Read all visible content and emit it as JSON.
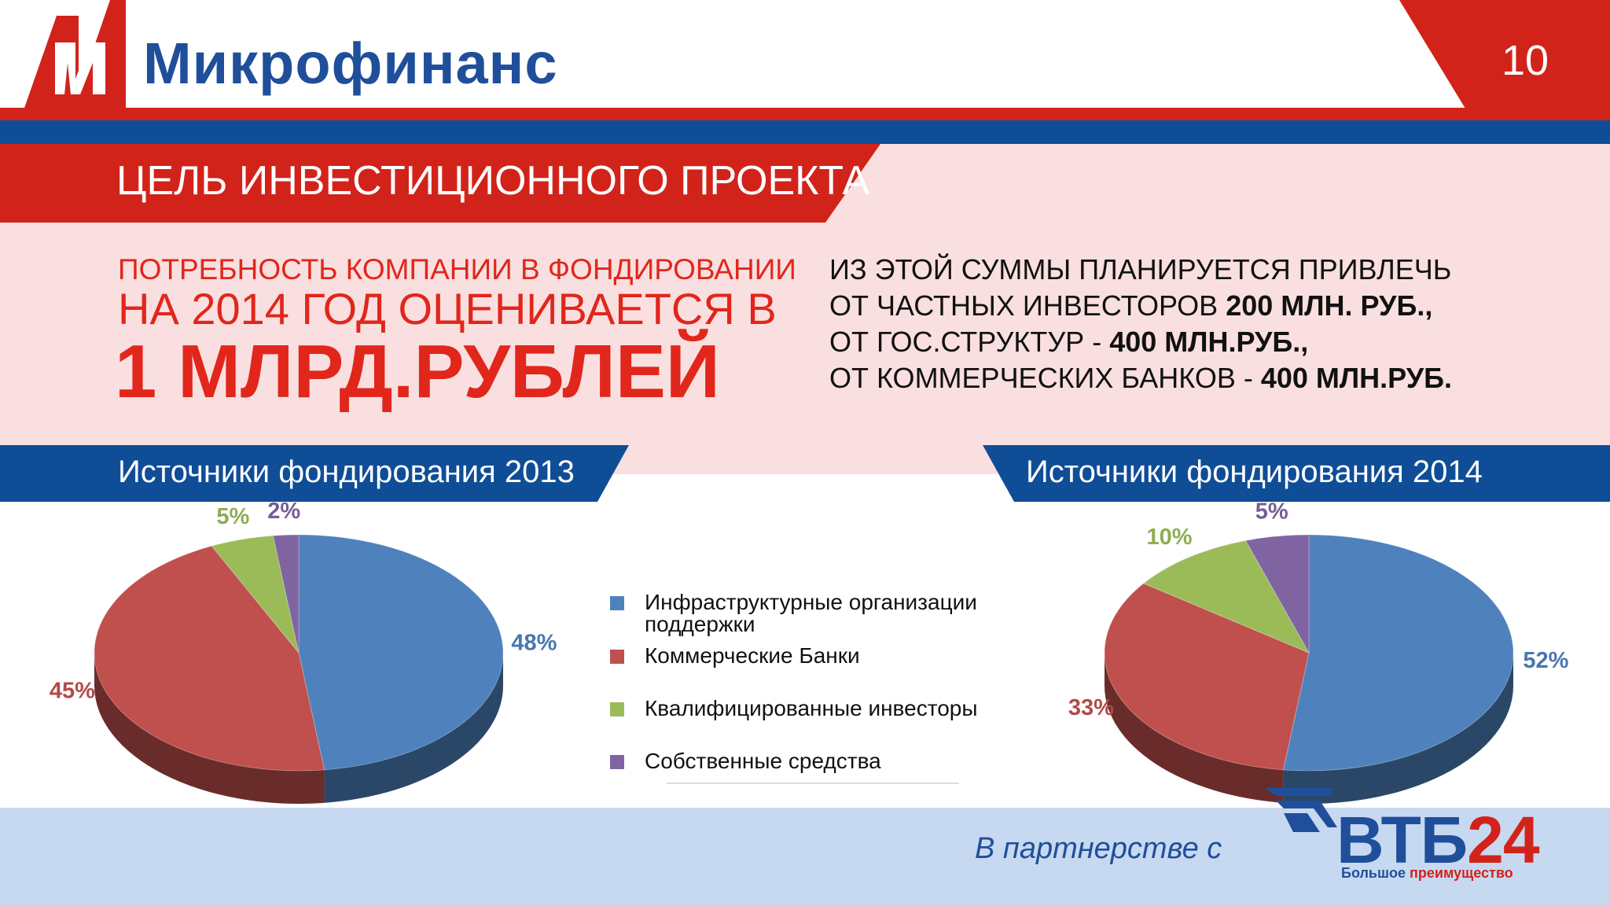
{
  "header": {
    "brand": "Микрофинанс",
    "page_number": "10",
    "logo_icon": "microfinance-m-logo"
  },
  "slide_title": "ЦЕЛЬ ИНВЕСТИЦИОННОГО ПРОЕКТА",
  "funding_need": {
    "line1": "ПОТРЕБНОСТЬ КОМПАНИИ В ФОНДИРОВАНИИ",
    "line2": "НА 2014 ГОД ОЦЕНИВАЕТСЯ В",
    "line3": "1 МЛРД.РУБЛЕЙ"
  },
  "plan": {
    "line1": "ИЗ ЭТОЙ СУММЫ ПЛАНИРУЕТСЯ ПРИВЛЕЧЬ",
    "line2_text": "ОТ ЧАСТНЫХ ИНВЕСТОРОВ ",
    "line2_bold": "200 МЛН. РУБ.,",
    "line3_text": "ОТ ГОС.СТРУКТУР - ",
    "line3_bold": "400 МЛН.РУБ.,",
    "line4_text": "ОТ КОММЕРЧЕСКИХ БАНКОВ - ",
    "line4_bold": "400 МЛН.РУБ."
  },
  "legend": [
    {
      "label": "Инфраструктурные организации поддержки",
      "color": "#4f81bd"
    },
    {
      "label": "Коммерческие Банки",
      "color": "#c0504d"
    },
    {
      "label": "Квалифицированные инвесторы",
      "color": "#9bbb59"
    },
    {
      "label": "Собственные средства",
      "color": "#8064a2"
    }
  ],
  "colors": {
    "red": "#d2231b",
    "blue": "#0f4d97",
    "pink": "#f9dfdf",
    "footer": "#c7d9f0"
  },
  "chart_data": [
    {
      "type": "pie",
      "title": "Источники фондирования 2013",
      "categories": [
        "Инфраструктурные организации поддержки",
        "Коммерческие Банки",
        "Квалифицированные инвесторы",
        "Собственные средства"
      ],
      "values": [
        48,
        45,
        5,
        2
      ],
      "labels": [
        "48%",
        "45%",
        "5%",
        "2%"
      ],
      "colors": [
        "#4f81bd",
        "#c0504d",
        "#9bbb59",
        "#8064a2"
      ],
      "legend": "center"
    },
    {
      "type": "pie",
      "title": "Источники фондирования 2014",
      "categories": [
        "Инфраструктурные организации поддержки",
        "Коммерческие Банки",
        "Квалифицированные инвесторы",
        "Собственные средства"
      ],
      "values": [
        52,
        33,
        10,
        5
      ],
      "labels": [
        "52%",
        "33%",
        "10%",
        "5%"
      ],
      "colors": [
        "#4f81bd",
        "#c0504d",
        "#9bbb59",
        "#8064a2"
      ],
      "legend": "center"
    }
  ],
  "footer": {
    "partner_text": "В партнерстве с",
    "bank_name_part1": "ВТБ",
    "bank_name_part2": "24",
    "slogan_part1": "Большое ",
    "slogan_part2": "преимущество",
    "bank_icon": "vtb-logo-icon"
  }
}
